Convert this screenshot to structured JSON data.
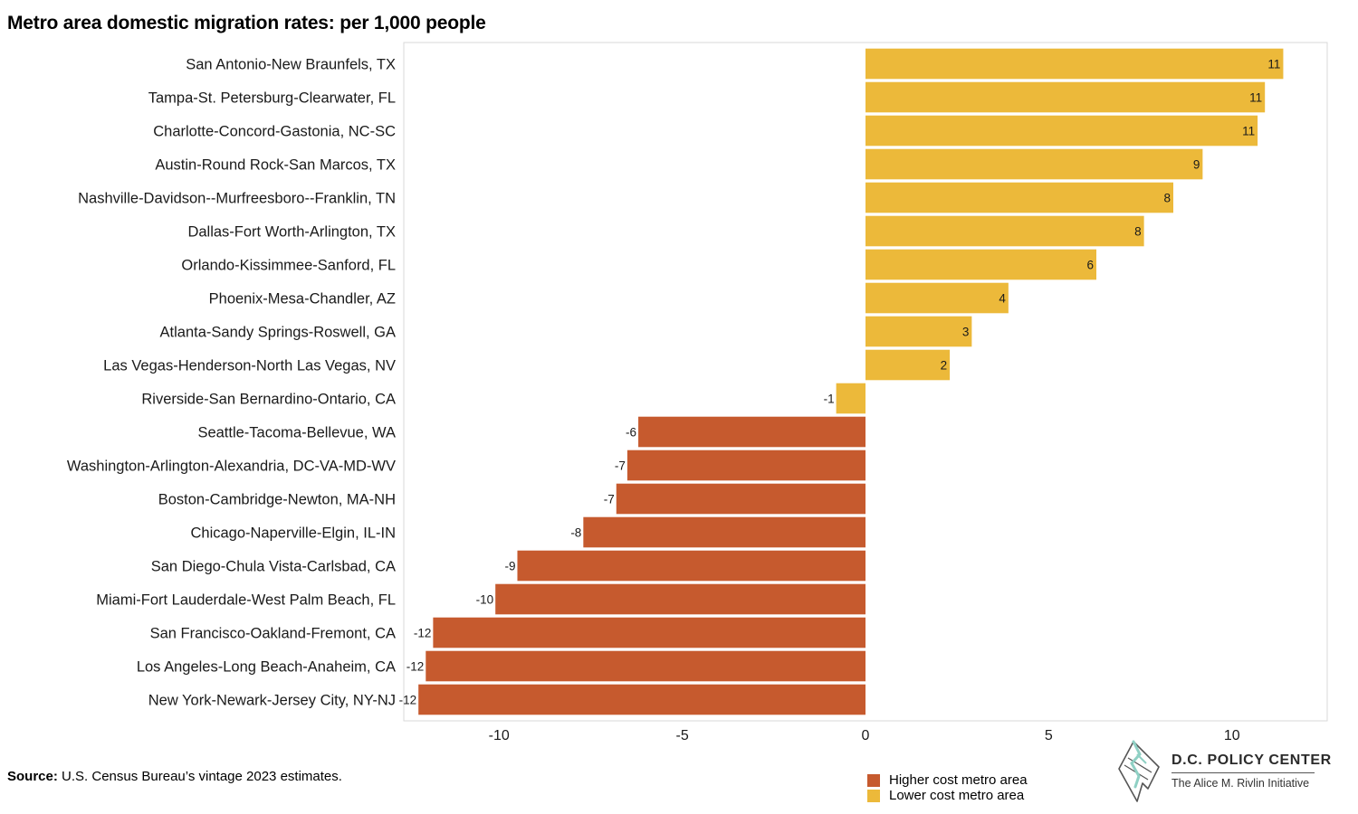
{
  "chart_data": {
    "type": "bar",
    "orientation": "horizontal",
    "title": "Metro area domestic migration rates: per 1,000 people",
    "xlabel": "",
    "ylabel": "",
    "xlim": [
      -12.6,
      12.6
    ],
    "xticks": [
      -10,
      -5,
      0,
      5,
      10
    ],
    "grid": false,
    "categories": [
      "San Antonio-New Braunfels, TX",
      "Tampa-St. Petersburg-Clearwater, FL",
      "Charlotte-Concord-Gastonia, NC-SC",
      "Austin-Round Rock-San Marcos, TX",
      "Nashville-Davidson--Murfreesboro--Franklin, TN",
      "Dallas-Fort Worth-Arlington, TX",
      "Orlando-Kissimmee-Sanford, FL",
      "Phoenix-Mesa-Chandler, AZ",
      "Atlanta-Sandy Springs-Roswell, GA",
      "Las Vegas-Henderson-North Las Vegas, NV",
      "Riverside-San Bernardino-Ontario, CA",
      "Seattle-Tacoma-Bellevue, WA",
      "Washington-Arlington-Alexandria, DC-VA-MD-WV",
      "Boston-Cambridge-Newton, MA-NH",
      "Chicago-Naperville-Elgin, IL-IN",
      "San Diego-Chula Vista-Carlsbad, CA",
      "Miami-Fort Lauderdale-West Palm Beach, FL",
      "San Francisco-Oakland-Fremont, CA",
      "Los Angeles-Long Beach-Anaheim, CA",
      "New York-Newark-Jersey City, NY-NJ"
    ],
    "values": [
      11.4,
      10.9,
      10.7,
      9.2,
      8.4,
      7.6,
      6.3,
      3.9,
      2.9,
      2.3,
      -0.8,
      -6.2,
      -6.5,
      -6.8,
      -7.7,
      -9.5,
      -10.1,
      -11.8,
      -12.0,
      -12.2
    ],
    "labels": [
      "11",
      "11",
      "11",
      "9",
      "8",
      "8",
      "6",
      "4",
      "3",
      "2",
      "-1",
      "-6",
      "-7",
      "-7",
      "-8",
      "-9",
      "-10",
      "-12",
      "-12",
      "-12"
    ],
    "groups": [
      "lower",
      "lower",
      "lower",
      "lower",
      "lower",
      "lower",
      "lower",
      "lower",
      "lower",
      "lower",
      "lower",
      "higher",
      "higher",
      "higher",
      "higher",
      "higher",
      "higher",
      "higher",
      "higher",
      "higher"
    ],
    "legend": [
      {
        "key": "higher",
        "name": "Higher cost metro area",
        "color": "#c65a2e"
      },
      {
        "key": "lower",
        "name": "Lower cost metro area",
        "color": "#ecb93a"
      }
    ],
    "legend_position": "bottom-right"
  },
  "source": {
    "label": "Source:",
    "text": "U.S. Census Bureau’s vintage 2023 estimates."
  },
  "branding": {
    "name": "D.C. POLICY CENTER",
    "tagline": "The Alice M. Rivlin Initiative"
  }
}
